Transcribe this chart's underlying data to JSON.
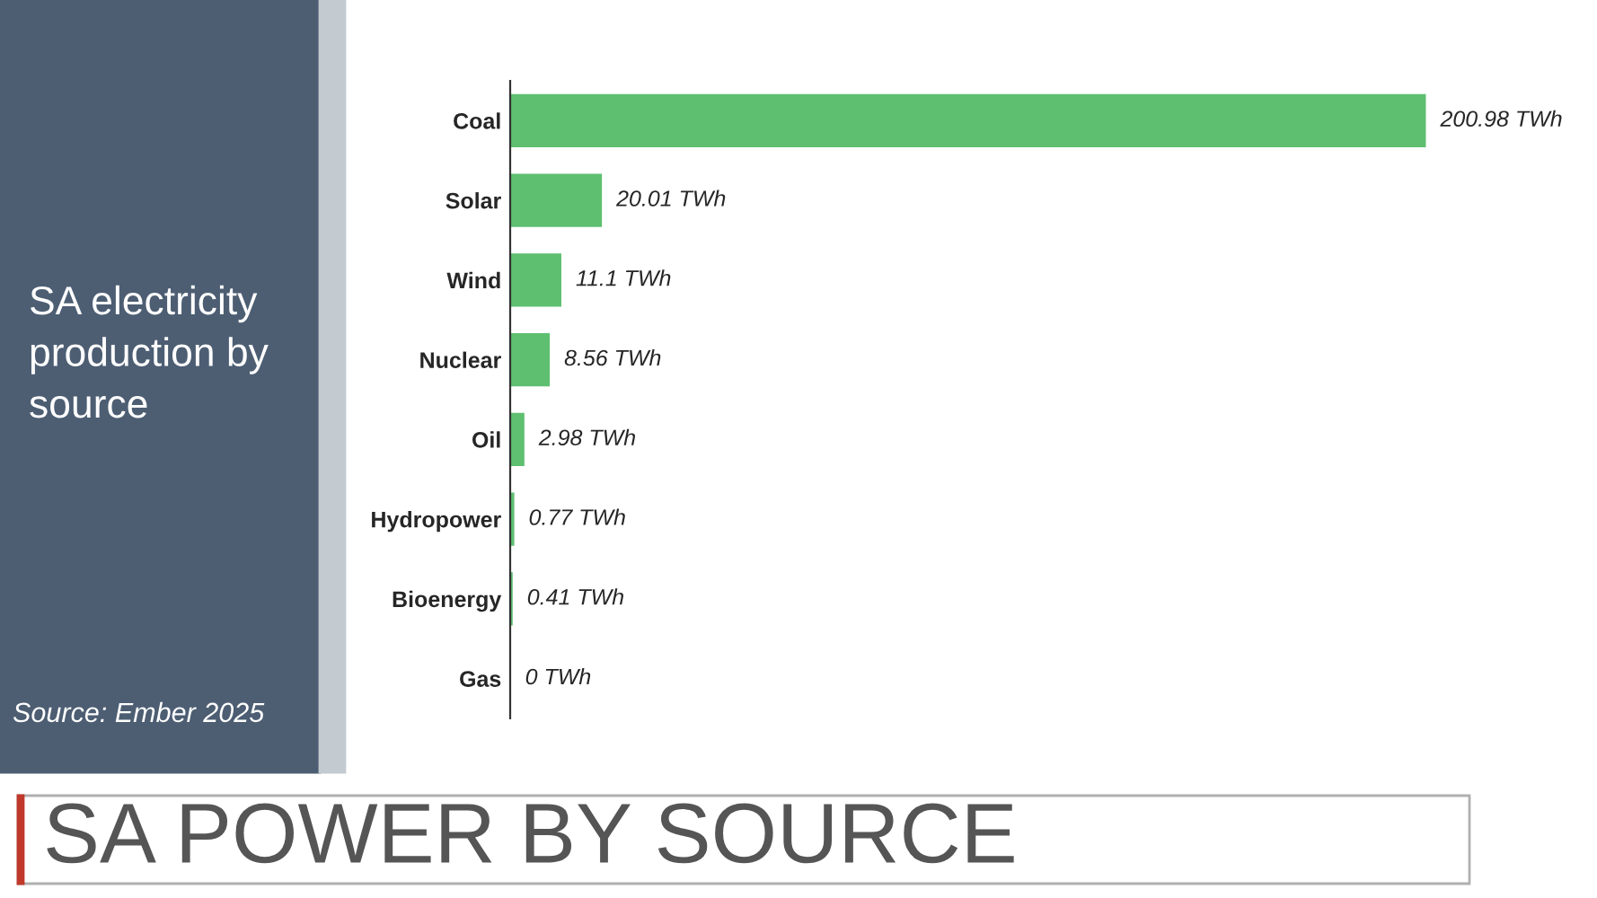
{
  "chart_data": {
    "type": "bar",
    "orientation": "horizontal",
    "title": "SA POWER BY SOURCE",
    "subtitle": "SA electricity production by source",
    "categories": [
      "Coal",
      "Solar",
      "Wind",
      "Nuclear",
      "Oil",
      "Hydropower",
      "Bioenergy",
      "Gas"
    ],
    "values": [
      200.98,
      20.01,
      11.1,
      8.56,
      2.98,
      0.77,
      0.41,
      0
    ],
    "value_labels": [
      "200.98 TWh",
      "20.01 TWh",
      "11.1 TWh",
      "8.56 TWh",
      "2.98 TWh",
      "0.77 TWh",
      "0.41 TWh",
      "0 TWh"
    ],
    "color": "#5ebf70",
    "grid": false,
    "tick_labels": "y",
    "annotations": [
      "Source: Ember 2025"
    ]
  }
}
